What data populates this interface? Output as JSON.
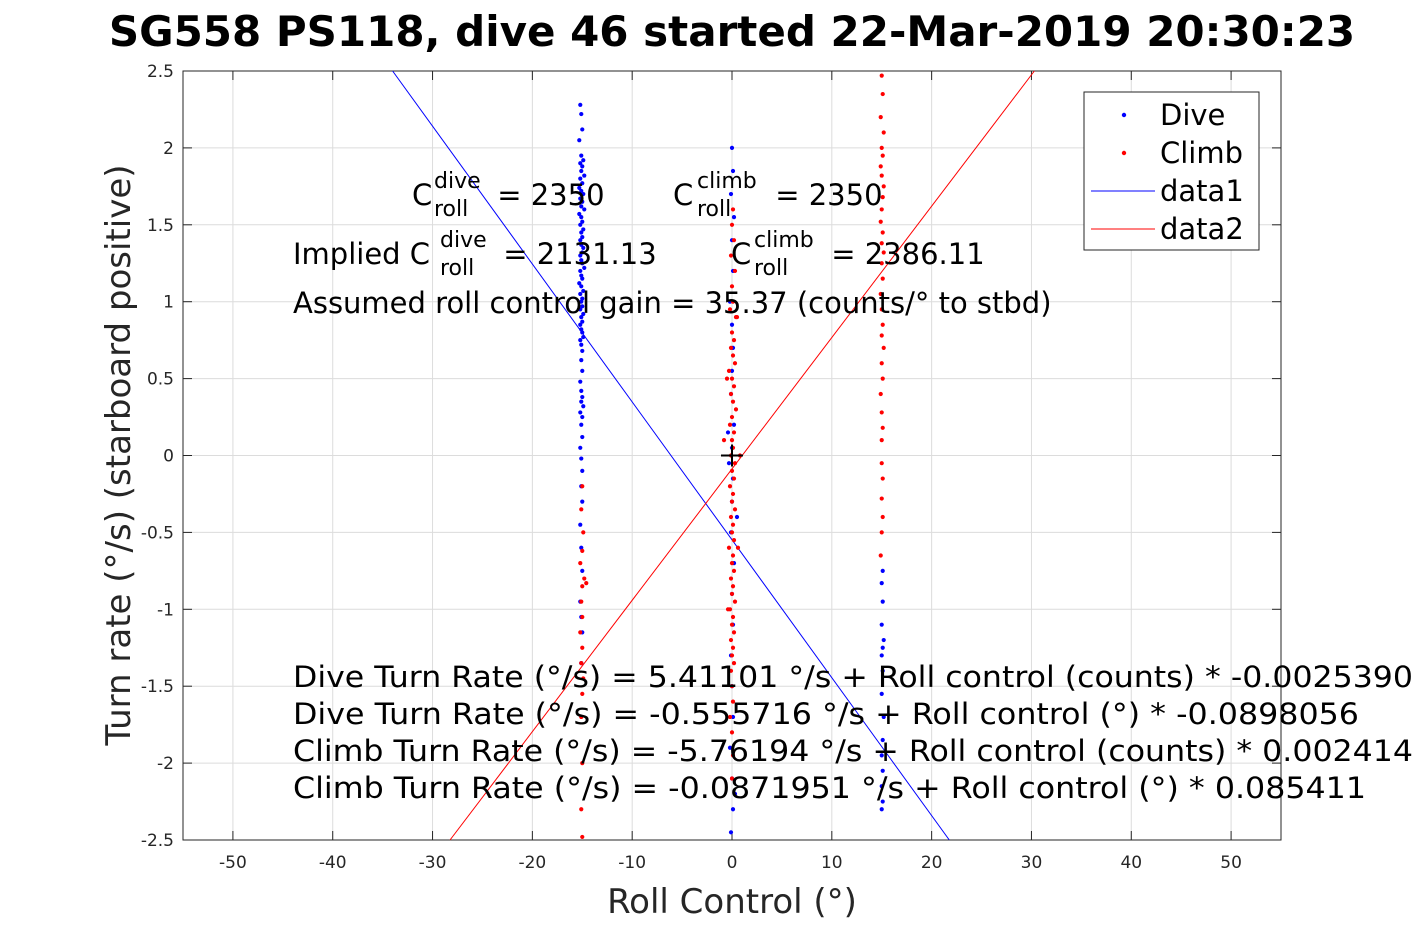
{
  "chart_data": {
    "type": "scatter",
    "title": "SG558 PS118, dive 46 started 22-Mar-2019 20:30:23",
    "xlabel": "Roll Control (°)",
    "ylabel": "Turn rate (°/s) (starboard positive)",
    "xlim": [
      -55,
      55
    ],
    "ylim": [
      -2.5,
      2.5
    ],
    "xticks": [
      -50,
      -40,
      -30,
      -20,
      -10,
      0,
      10,
      20,
      30,
      40,
      50
    ],
    "yticks": [
      -2.5,
      -2,
      -1.5,
      -1,
      -0.5,
      0,
      0.5,
      1,
      1.5,
      2,
      2.5
    ],
    "xtick_labels": [
      "-50",
      "-40",
      "-30",
      "-20",
      "-10",
      "0",
      "10",
      "20",
      "30",
      "40",
      "50"
    ],
    "ytick_labels": [
      "-2.5",
      "-2",
      "-1.5",
      "-1",
      "-0.5",
      "0",
      "0.5",
      "1",
      "1.5",
      "2",
      "2.5"
    ],
    "grid": true,
    "legend_position": "top-right",
    "legend": [
      "Dive",
      "Climb",
      "data1",
      "data2"
    ],
    "series": [
      {
        "name": "Dive",
        "type": "scatter",
        "color": "#0000ff",
        "points": [
          [
            -15.2,
            2.28
          ],
          [
            -15.1,
            2.22
          ],
          [
            -15.0,
            2.12
          ],
          [
            -15.3,
            2.05
          ],
          [
            -15.1,
            1.95
          ],
          [
            -14.9,
            1.92
          ],
          [
            -15.2,
            1.9
          ],
          [
            -15.0,
            1.88
          ],
          [
            -15.1,
            1.85
          ],
          [
            -14.8,
            1.82
          ],
          [
            -15.2,
            1.8
          ],
          [
            -15.0,
            1.77
          ],
          [
            -15.3,
            1.74
          ],
          [
            -15.1,
            1.72
          ],
          [
            -14.9,
            1.7
          ],
          [
            -15.2,
            1.67
          ],
          [
            -15.0,
            1.65
          ],
          [
            -15.1,
            1.62
          ],
          [
            -14.8,
            1.6
          ],
          [
            -15.3,
            1.57
          ],
          [
            -15.1,
            1.55
          ],
          [
            -15.0,
            1.52
          ],
          [
            -15.2,
            1.5
          ],
          [
            -14.9,
            1.47
          ],
          [
            -15.1,
            1.45
          ],
          [
            -15.0,
            1.42
          ],
          [
            -15.2,
            1.4
          ],
          [
            -15.1,
            1.37
          ],
          [
            -14.9,
            1.35
          ],
          [
            -15.0,
            1.32
          ],
          [
            -15.2,
            1.3
          ],
          [
            -15.1,
            1.27
          ],
          [
            -15.0,
            1.25
          ],
          [
            -14.8,
            1.22
          ],
          [
            -15.2,
            1.2
          ],
          [
            -15.1,
            1.17
          ],
          [
            -15.0,
            1.15
          ],
          [
            -15.3,
            1.12
          ],
          [
            -15.1,
            1.1
          ],
          [
            -14.9,
            1.07
          ],
          [
            -15.2,
            1.05
          ],
          [
            -15.0,
            1.02
          ],
          [
            -15.1,
            1.0
          ],
          [
            -15.0,
            0.97
          ],
          [
            -15.2,
            0.95
          ],
          [
            -14.9,
            0.92
          ],
          [
            -15.1,
            0.9
          ],
          [
            -15.0,
            0.87
          ],
          [
            -15.2,
            0.85
          ],
          [
            -15.1,
            0.82
          ],
          [
            -15.0,
            0.8
          ],
          [
            -14.9,
            0.77
          ],
          [
            -15.2,
            0.75
          ],
          [
            -15.1,
            0.72
          ],
          [
            -15.0,
            0.68
          ],
          [
            -15.1,
            0.62
          ],
          [
            -15.0,
            0.55
          ],
          [
            -15.2,
            0.48
          ],
          [
            -15.1,
            0.42
          ],
          [
            -15.0,
            0.38
          ],
          [
            -15.1,
            0.35
          ],
          [
            -14.9,
            0.32
          ],
          [
            -15.2,
            0.28
          ],
          [
            -15.0,
            0.25
          ],
          [
            -15.1,
            0.2
          ],
          [
            -15.0,
            0.12
          ],
          [
            -15.2,
            0.05
          ],
          [
            -15.1,
            -0.02
          ],
          [
            -15.0,
            -0.1
          ],
          [
            -15.1,
            -0.2
          ],
          [
            -15.0,
            -0.3
          ],
          [
            -15.2,
            -0.45
          ],
          [
            -15.1,
            -0.6
          ],
          [
            -15.0,
            -0.75
          ],
          [
            -15.2,
            -0.95
          ],
          [
            -15.1,
            -1.05
          ],
          [
            -15.0,
            -1.15
          ],
          [
            -15.1,
            -1.35
          ],
          [
            0.0,
            2.0
          ],
          [
            0.1,
            1.85
          ],
          [
            -0.1,
            1.7
          ],
          [
            0.2,
            1.55
          ],
          [
            0.0,
            1.4
          ],
          [
            0.1,
            1.2
          ],
          [
            -0.2,
            1.0
          ],
          [
            0.0,
            0.85
          ],
          [
            0.1,
            0.7
          ],
          [
            0.0,
            0.55
          ],
          [
            -0.1,
            0.4
          ],
          [
            0.2,
            0.2
          ],
          [
            0.0,
            0.05
          ],
          [
            -0.3,
            -0.05
          ],
          [
            0.1,
            -0.15
          ],
          [
            0.0,
            -0.3
          ],
          [
            -0.1,
            -0.5
          ],
          [
            0.2,
            -0.7
          ],
          [
            0.0,
            -0.9
          ],
          [
            0.1,
            -1.1
          ],
          [
            -0.1,
            -1.3
          ],
          [
            0.0,
            -1.5
          ],
          [
            0.1,
            -1.7
          ],
          [
            -0.2,
            -1.9
          ],
          [
            0.0,
            -2.1
          ],
          [
            0.1,
            -2.3
          ],
          [
            -0.1,
            -2.45
          ],
          [
            0.3,
            -2.2
          ],
          [
            -0.4,
            0.15
          ],
          [
            0.5,
            -0.4
          ],
          [
            15.1,
            -0.75
          ],
          [
            15.0,
            -0.83
          ],
          [
            15.1,
            -0.95
          ],
          [
            15.0,
            -1.1
          ],
          [
            15.2,
            -1.2
          ],
          [
            15.1,
            -1.25
          ],
          [
            15.0,
            -1.3
          ],
          [
            15.1,
            -1.4
          ],
          [
            15.0,
            -1.55
          ],
          [
            15.2,
            -1.7
          ],
          [
            15.1,
            -1.85
          ],
          [
            15.0,
            -1.95
          ],
          [
            15.1,
            -2.05
          ],
          [
            15.0,
            -2.15
          ],
          [
            15.1,
            -2.25
          ],
          [
            15.0,
            -2.3
          ]
        ]
      },
      {
        "name": "Climb",
        "type": "scatter",
        "color": "#ff0000",
        "points": [
          [
            15.0,
            2.47
          ],
          [
            15.1,
            2.35
          ],
          [
            14.9,
            2.2
          ],
          [
            15.2,
            2.1
          ],
          [
            15.0,
            2.0
          ],
          [
            15.1,
            1.95
          ],
          [
            14.9,
            1.88
          ],
          [
            15.0,
            1.82
          ],
          [
            15.2,
            1.75
          ],
          [
            15.1,
            1.68
          ],
          [
            15.0,
            1.6
          ],
          [
            14.9,
            1.52
          ],
          [
            15.1,
            1.45
          ],
          [
            15.0,
            1.38
          ],
          [
            15.2,
            1.32
          ],
          [
            15.0,
            1.25
          ],
          [
            15.1,
            1.15
          ],
          [
            14.9,
            1.05
          ],
          [
            15.0,
            0.95
          ],
          [
            15.1,
            0.85
          ],
          [
            15.0,
            0.78
          ],
          [
            15.2,
            0.7
          ],
          [
            15.0,
            0.6
          ],
          [
            15.1,
            0.5
          ],
          [
            14.9,
            0.4
          ],
          [
            15.0,
            0.28
          ],
          [
            15.1,
            0.18
          ],
          [
            15.0,
            0.1
          ],
          [
            15.0,
            -0.05
          ],
          [
            15.1,
            -0.15
          ],
          [
            15.0,
            -0.28
          ],
          [
            15.1,
            -0.4
          ],
          [
            15.0,
            -0.5
          ],
          [
            14.9,
            -0.65
          ],
          [
            0.1,
            1.6
          ],
          [
            0.0,
            1.5
          ],
          [
            0.2,
            1.4
          ],
          [
            -0.1,
            1.3
          ],
          [
            0.3,
            1.2
          ],
          [
            0.0,
            1.1
          ],
          [
            0.1,
            1.0
          ],
          [
            -0.2,
            0.95
          ],
          [
            0.4,
            0.9
          ],
          [
            0.0,
            0.8
          ],
          [
            0.2,
            0.75
          ],
          [
            -0.1,
            0.7
          ],
          [
            0.1,
            0.65
          ],
          [
            0.3,
            0.6
          ],
          [
            -0.3,
            0.55
          ],
          [
            0.0,
            0.5
          ],
          [
            0.2,
            0.45
          ],
          [
            -0.1,
            0.4
          ],
          [
            0.1,
            0.35
          ],
          [
            0.4,
            0.3
          ],
          [
            0.0,
            0.25
          ],
          [
            -0.2,
            0.2
          ],
          [
            0.2,
            0.15
          ],
          [
            0.0,
            0.1
          ],
          [
            0.1,
            0.05
          ],
          [
            -0.1,
            0.0
          ],
          [
            0.3,
            -0.05
          ],
          [
            0.0,
            -0.1
          ],
          [
            0.2,
            -0.15
          ],
          [
            -0.2,
            -0.2
          ],
          [
            0.1,
            -0.25
          ],
          [
            0.0,
            -0.3
          ],
          [
            0.3,
            -0.35
          ],
          [
            -0.1,
            -0.4
          ],
          [
            0.1,
            -0.45
          ],
          [
            0.0,
            -0.5
          ],
          [
            0.2,
            -0.55
          ],
          [
            -0.3,
            -0.6
          ],
          [
            0.1,
            -0.65
          ],
          [
            0.0,
            -0.7
          ],
          [
            0.2,
            -0.75
          ],
          [
            -0.1,
            -0.8
          ],
          [
            0.1,
            -0.85
          ],
          [
            0.0,
            -0.9
          ],
          [
            0.3,
            -0.95
          ],
          [
            -0.2,
            -1.0
          ],
          [
            0.1,
            -1.05
          ],
          [
            0.0,
            -1.1
          ],
          [
            0.2,
            -1.15
          ],
          [
            -0.1,
            -1.2
          ],
          [
            0.1,
            -1.25
          ],
          [
            0.0,
            -1.3
          ],
          [
            0.2,
            -1.35
          ],
          [
            -0.1,
            -1.4
          ],
          [
            0.0,
            -1.5
          ],
          [
            0.1,
            -1.6
          ],
          [
            -0.2,
            -1.7
          ],
          [
            0.0,
            -1.8
          ],
          [
            0.1,
            -1.95
          ],
          [
            0.0,
            -2.1
          ],
          [
            -0.5,
            0.5
          ],
          [
            0.6,
            -0.6
          ],
          [
            -0.4,
            -1.0
          ],
          [
            0.5,
            0.9
          ],
          [
            0.8,
            0.0
          ],
          [
            -0.8,
            0.1
          ],
          [
            -15.0,
            -0.2
          ],
          [
            -15.1,
            -0.35
          ],
          [
            -14.9,
            -0.5
          ],
          [
            -15.0,
            -0.62
          ],
          [
            -15.2,
            -0.7
          ],
          [
            -14.8,
            -0.8
          ],
          [
            -15.0,
            -0.85
          ],
          [
            -14.6,
            -0.83
          ],
          [
            -15.1,
            -0.95
          ],
          [
            -15.0,
            -1.05
          ],
          [
            -15.2,
            -1.15
          ],
          [
            -15.0,
            -1.25
          ],
          [
            -15.1,
            -1.35
          ],
          [
            -14.9,
            -1.45
          ],
          [
            -15.0,
            -1.55
          ],
          [
            -15.1,
            -1.7
          ],
          [
            -15.0,
            -2.0
          ],
          [
            -15.1,
            -2.3
          ],
          [
            -15.0,
            -2.48
          ]
        ]
      },
      {
        "name": "data1",
        "type": "line",
        "color": "#0000ff",
        "x": [
          -34.0,
          21.77
        ],
        "y": [
          2.5,
          -2.5
        ]
      },
      {
        "name": "data2",
        "type": "line",
        "color": "#ff0000",
        "x": [
          -28.25,
          30.29
        ],
        "y": [
          -2.5,
          2.5
        ]
      }
    ],
    "annotations": {
      "c_dive": {
        "base": "C",
        "sup": "dive",
        "sub": "roll",
        "rest": " = 2350"
      },
      "c_climb": {
        "base": "C",
        "sup": "climb",
        "sub": "roll",
        "rest": " = 2350"
      },
      "implied_prefix": "Implied C",
      "implied_dive_sup": "dive",
      "implied_dive_sub": "roll",
      "implied_dive_rest": " = 2131.13",
      "implied_climb_base": "C",
      "implied_climb_sup": "climb",
      "implied_climb_sub": "roll",
      "implied_climb_rest": " = 2386.11",
      "gain": "Assumed roll control gain = 35.37 (counts/° to stbd)",
      "eq1": "Dive Turn Rate (°/s) = 5.41101 °/s + Roll control (counts) * -0.0025390",
      "eq2": "Dive Turn Rate (°/s) = -0.555716 °/s + Roll control (°) * -0.0898056",
      "eq3": "Climb Turn Rate (°/s) = -5.76194 °/s + Roll control (counts) * 0.002414",
      "eq4": "Climb Turn Rate (°/s) = -0.0871951 °/s + Roll control (°) * 0.085411"
    },
    "center_marker": [
      0,
      0
    ]
  }
}
